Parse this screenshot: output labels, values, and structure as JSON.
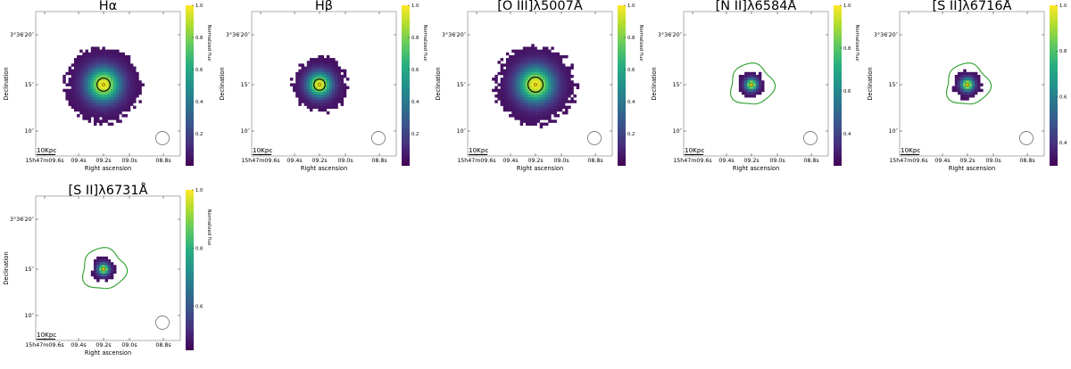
{
  "colors": {
    "cmap": [
      "#440154",
      "#472d7b",
      "#3b528b",
      "#2c728e",
      "#21918c",
      "#28ae80",
      "#5ec962",
      "#addc30",
      "#fde725"
    ],
    "contour_inner": "#000000",
    "contour_outer": "#2ca02c",
    "peak_marker": "#ffd400",
    "beam": "#808080"
  },
  "chart_data": [
    {
      "type": "heatmap",
      "title": "Hα",
      "xlabel": "Right ascension",
      "ylabel": "Declination",
      "x_ticks": [
        "15h47m09.6s",
        "09.4s",
        "09.2s",
        "09.0s",
        "08.8s"
      ],
      "y_ticks": [
        "3°36′20″",
        "15″",
        "10″"
      ],
      "colorbar_label": "Normalized flux",
      "colorbar_ticks": [
        "1.0",
        "0.8",
        "0.6",
        "0.4",
        "0.2"
      ],
      "colorbar_range": [
        0.0,
        1.0
      ],
      "scalebar": "10Kpc",
      "emission_radius_arcsec": 4.0,
      "contour": "black",
      "contour_radius_arcsec": 0.7,
      "beam": true
    },
    {
      "type": "heatmap",
      "title": "Hβ",
      "xlabel": "Right ascension",
      "ylabel": "Declination",
      "x_ticks": [
        "15h47m09.6s",
        "09.4s",
        "09.2s",
        "09.0s",
        "08.8s"
      ],
      "y_ticks": [
        "3°36′20″",
        "15″",
        "10″"
      ],
      "colorbar_label": "Normalized flux",
      "colorbar_ticks": [
        "1.0",
        "0.8",
        "0.6",
        "0.4",
        "0.2"
      ],
      "colorbar_range": [
        0.0,
        1.0
      ],
      "scalebar": "10Kpc",
      "emission_radius_arcsec": 2.9,
      "contour": "black",
      "contour_radius_arcsec": 0.6,
      "beam": true
    },
    {
      "type": "heatmap",
      "title": "[O III]λ5007Å",
      "xlabel": "Right ascension",
      "ylabel": "Declination",
      "x_ticks": [
        "15h47m09.6s",
        "09.4s",
        "09.2s",
        "09.0s",
        "08.8s"
      ],
      "y_ticks": [
        "3°36′20″",
        "15″",
        "10″"
      ],
      "colorbar_label": "Normalized flux",
      "colorbar_ticks": [
        "1.0",
        "0.8",
        "0.6",
        "0.4",
        "0.2"
      ],
      "colorbar_range": [
        0.0,
        1.0
      ],
      "scalebar": "10Kpc",
      "emission_radius_arcsec": 4.2,
      "contour": "black",
      "contour_radius_arcsec": 0.8,
      "beam": true
    },
    {
      "type": "heatmap",
      "title": "[N II]λ6584Å",
      "xlabel": "Right ascension",
      "ylabel": "Declination",
      "x_ticks": [
        "15h47m09.6s",
        "09.4s",
        "09.2s",
        "09.0s",
        "08.8s"
      ],
      "y_ticks": [
        "3°36′20″",
        "15″",
        "10″"
      ],
      "colorbar_label": "Normalized flux",
      "colorbar_ticks": [
        "1.0",
        "0.8",
        "0.6",
        "0.4"
      ],
      "colorbar_range": [
        0.25,
        1.0
      ],
      "scalebar": "10Kpc",
      "emission_radius_arcsec": 1.4,
      "contour": "green",
      "contour_radius_arcsec": 2.3,
      "beam": true
    },
    {
      "type": "heatmap",
      "title": "[S II]λ6716Å",
      "xlabel": "Right ascension",
      "ylabel": "Declination",
      "x_ticks": [
        "15h47m09.6s",
        "09.4s",
        "09.2s",
        "09.0s",
        "08.8s"
      ],
      "y_ticks": [
        "3°36′20″",
        "15″",
        "10″"
      ],
      "colorbar_label": "Normalized flux",
      "colorbar_ticks": [
        "1.0",
        "0.8",
        "0.6",
        "0.4"
      ],
      "colorbar_range": [
        0.3,
        1.0
      ],
      "scalebar": "10Kpc",
      "emission_radius_arcsec": 1.5,
      "contour": "green",
      "contour_radius_arcsec": 2.3,
      "beam": true
    },
    {
      "type": "heatmap",
      "title": "[S II]λ6731Å",
      "xlabel": "Right ascension",
      "ylabel": "Declination",
      "x_ticks": [
        "15h47m09.6s",
        "09.4s",
        "09.2s",
        "09.0s",
        "08.8s"
      ],
      "y_ticks": [
        "3°36′20″",
        "15″",
        "10″"
      ],
      "colorbar_label": "Normalized flux",
      "colorbar_ticks": [
        "1.0",
        "0.8",
        "0.6"
      ],
      "colorbar_range": [
        0.45,
        1.0
      ],
      "scalebar": "10Kpc",
      "emission_radius_arcsec": 1.3,
      "contour": "green",
      "contour_radius_arcsec": 2.3,
      "beam": true
    }
  ]
}
